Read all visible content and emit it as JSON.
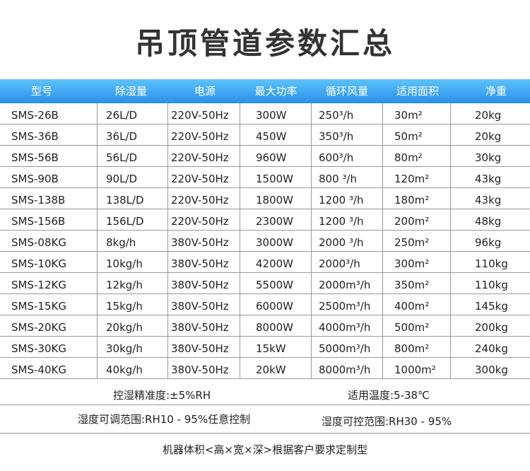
{
  "title": "吊顶管道参数汇总",
  "headers": [
    "型号",
    "除湿量",
    "电源",
    "最大功率",
    "循环风量",
    "适用面积",
    "净重"
  ],
  "rows": [
    [
      "SMS-26B",
      "26L/D",
      "220V-50Hz",
      "300W",
      "250³/h",
      "30m²",
      "20kg"
    ],
    [
      "SMS-36B",
      "36L/D",
      "220V-50Hz",
      "450W",
      "350³/h",
      "50m²",
      "20kg"
    ],
    [
      "SMS-56B",
      "56L/D",
      "220V-50Hz",
      "960W",
      "600³/h",
      "80m²",
      "30kg"
    ],
    [
      "SMS-90B",
      "90L/D",
      "220V-50Hz",
      "1500W",
      "800 ³/h",
      "120m²",
      "43kg"
    ],
    [
      "SMS-138B",
      "138L/D",
      "220V-50Hz",
      "1800W",
      "1200 ³/h",
      "180m²",
      "43kg"
    ],
    [
      "SMS-156B",
      "156L/D",
      "220V-50Hz",
      "2300W",
      "1200 ³/h",
      "200m²",
      "48kg"
    ],
    [
      "SMS-08KG",
      "8kg/h",
      "380V-50Hz",
      "3000W",
      "2000 ³/h",
      "250m²",
      "96kg"
    ],
    [
      "SMS-10KG",
      "10kg/h",
      "380V-50Hz",
      "4200W",
      "2000³/h",
      "300m²",
      "110kg"
    ],
    [
      "SMS-12KG",
      "12kg/h",
      "380V-50Hz",
      "5500W",
      "2000m³/h",
      "350m²",
      "110kg"
    ],
    [
      "SMS-15KG",
      "15kg/h",
      "380V-50Hz",
      "6000W",
      "2500m³/h",
      "400m²",
      "145kg"
    ],
    [
      "SMS-20KG",
      "20kg/h",
      "380V-50Hz",
      "8000W",
      "4000m³/h",
      "500m²",
      "200kg"
    ],
    [
      "SMS-30KG",
      "30kg/h",
      "380V-50Hz",
      "15kW",
      "5000m³/h",
      "800m²",
      "240kg"
    ],
    [
      "SMS-40KG",
      "40kg/h",
      "380V-50Hz",
      "20kW",
      "8000m³/h",
      "1000m²",
      "300kg"
    ]
  ],
  "notes": {
    "accuracy": "控湿精准度:±5%RH",
    "temp": "适用温度:5-38℃",
    "adjust_range": "湿度可调范围:RH10 - 95%任意控制",
    "control_range": "湿度可控范围:RH30 - 95%",
    "custom": "机器体积<高×宽×深>根据客户要求定制型"
  },
  "colors": {
    "header_top": "#5cc3fb",
    "header_bottom": "#2a8fea"
  }
}
